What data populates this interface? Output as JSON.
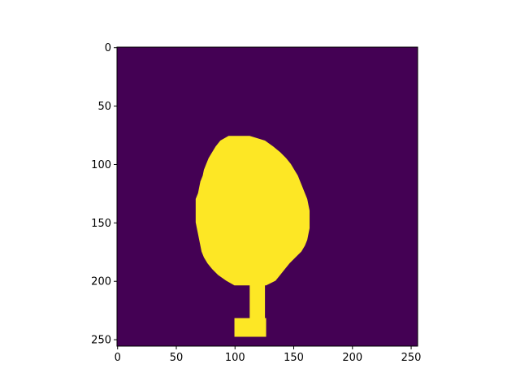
{
  "chart_data": {
    "type": "heatmap",
    "title": "",
    "xlabel": "",
    "ylabel": "",
    "xlim": [
      0,
      256
    ],
    "ylim": [
      256,
      0
    ],
    "xticks": [
      0,
      50,
      100,
      150,
      200,
      250
    ],
    "yticks": [
      0,
      50,
      100,
      150,
      200,
      250
    ],
    "grid": false,
    "colors": {
      "background": "#440154",
      "foreground": "#fde725"
    },
    "mask_description_values": {
      "blob_rows": [
        76,
        80,
        85,
        90,
        95,
        100,
        105,
        110,
        115,
        120,
        125,
        130,
        135,
        140,
        145,
        150,
        155,
        160,
        165,
        170,
        175,
        180,
        185,
        190,
        195,
        200,
        204
      ],
      "blob_left": [
        95,
        88,
        84,
        81,
        78,
        76,
        74,
        73,
        71,
        70,
        69,
        67,
        67,
        67,
        67,
        67,
        68,
        69,
        70,
        71,
        72,
        74,
        77,
        81,
        86,
        93,
        100
      ],
      "blob_right": [
        113,
        126,
        133,
        139,
        144,
        148,
        151,
        154,
        156,
        158,
        160,
        162,
        163,
        164,
        164,
        164,
        164,
        163,
        162,
        160,
        157,
        152,
        147,
        143,
        139,
        135,
        127
      ],
      "stem": {
        "x0": 113,
        "x1": 126,
        "y0": 200,
        "y1": 235
      },
      "stem_base": {
        "x0": 100,
        "x1": 127,
        "y0": 232,
        "y1": 248
      }
    }
  }
}
